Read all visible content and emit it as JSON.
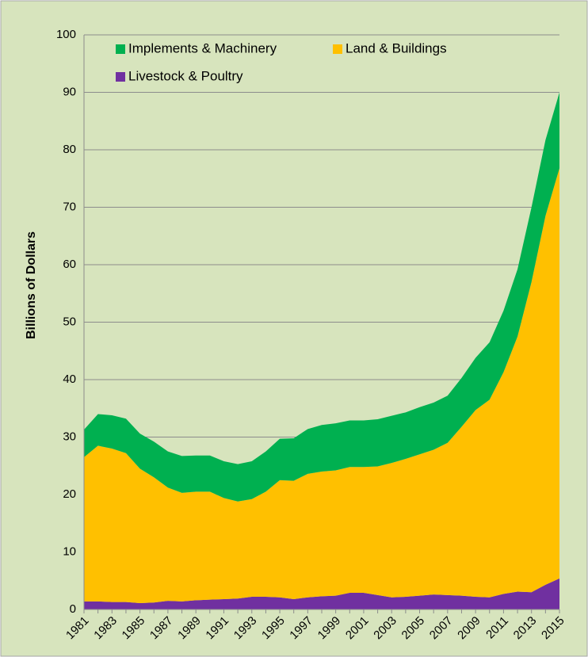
{
  "chart_data": {
    "type": "stacked-area",
    "y_label": "Billions of Dollars",
    "categories": [
      "1981",
      null,
      "1983",
      null,
      "1985",
      null,
      "1987",
      null,
      "1989",
      null,
      "1991",
      null,
      "1993",
      null,
      "1995",
      null,
      "1997",
      null,
      "1999",
      null,
      "2001",
      null,
      "2003",
      null,
      "2005",
      null,
      "2007",
      null,
      "2009",
      null,
      "2011",
      null,
      "2013",
      null,
      "2015"
    ],
    "series": [
      {
        "name": "Implements & Machinery",
        "color": "#00b050",
        "values": [
          4.8,
          5.5,
          5.8,
          6.0,
          6.1,
          6.2,
          6.3,
          6.4,
          6.3,
          6.3,
          6.4,
          6.5,
          6.6,
          7.0,
          7.2,
          7.4,
          7.8,
          8.1,
          8.2,
          8.1,
          8.1,
          8.2,
          8.2,
          8.1,
          8.2,
          8.2,
          8.2,
          8.5,
          9.1,
          10.0,
          10.7,
          11.7,
          13.0,
          13.2,
          13.2
        ]
      },
      {
        "name": "Land & Buildings",
        "color": "#ffc000",
        "values": [
          25.1,
          27.1,
          26.7,
          25.9,
          23.4,
          21.8,
          19.7,
          18.9,
          18.9,
          18.8,
          17.6,
          16.9,
          17.0,
          18.3,
          20.4,
          20.6,
          21.5,
          21.7,
          21.8,
          21.9,
          21.9,
          22.4,
          23.4,
          24.0,
          24.6,
          25.2,
          26.5,
          29.4,
          32.5,
          34.4,
          38.6,
          44.4,
          54.0,
          64.2,
          71.4
        ]
      },
      {
        "name": "Livestock & Poultry",
        "color": "#7030a0",
        "values": [
          1.4,
          1.4,
          1.3,
          1.3,
          1.1,
          1.2,
          1.5,
          1.4,
          1.6,
          1.7,
          1.8,
          1.9,
          2.2,
          2.2,
          2.1,
          1.8,
          2.1,
          2.3,
          2.4,
          2.9,
          2.9,
          2.5,
          2.1,
          2.2,
          2.4,
          2.6,
          2.5,
          2.4,
          2.2,
          2.1,
          2.7,
          3.1,
          3.0,
          4.3,
          5.4
        ]
      }
    ],
    "ylim": [
      0,
      100
    ],
    "yticks": [
      0,
      10,
      20,
      30,
      40,
      50,
      60,
      70,
      80,
      90,
      100
    ],
    "grid": true,
    "background": "#d7e4bd",
    "legend": "top"
  }
}
